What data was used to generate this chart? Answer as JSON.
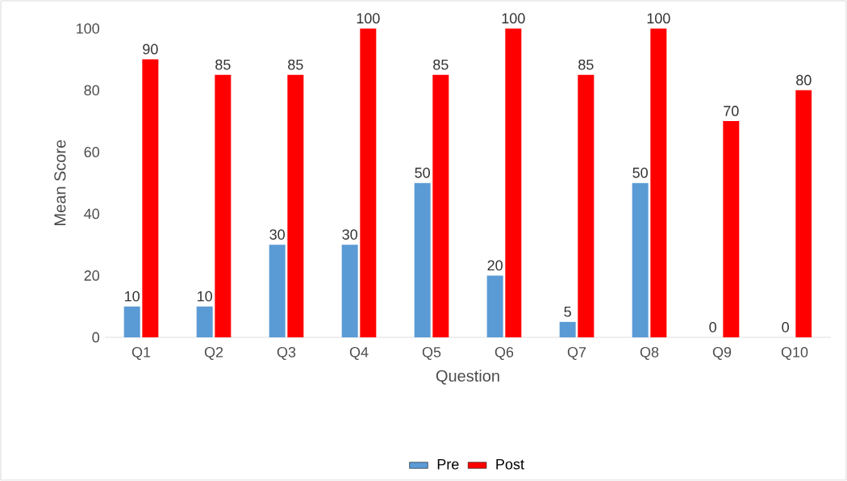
{
  "chart_data": {
    "type": "bar",
    "xlabel": "Question",
    "ylabel": "Mean Score",
    "categories": [
      "Q1",
      "Q2",
      "Q3",
      "Q4",
      "Q5",
      "Q6",
      "Q7",
      "Q8",
      "Q9",
      "Q10"
    ],
    "series": [
      {
        "name": "Pre",
        "color": "#5b9bd5",
        "values": [
          10,
          10,
          30,
          30,
          50,
          20,
          5,
          50,
          0,
          0
        ]
      },
      {
        "name": "Post",
        "color": "#ff0000",
        "values": [
          90,
          85,
          85,
          100,
          85,
          100,
          85,
          100,
          70,
          80
        ]
      }
    ],
    "ylim": [
      0,
      100
    ],
    "yticks": [
      0,
      20,
      40,
      60,
      80,
      100
    ],
    "data_labels": true,
    "legend": "bottom"
  }
}
